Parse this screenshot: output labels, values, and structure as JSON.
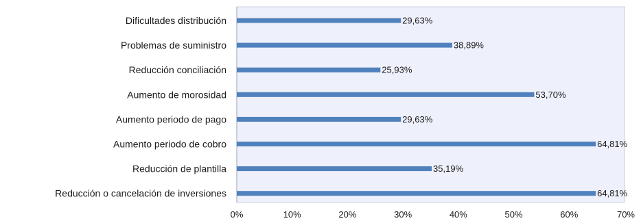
{
  "chart_data": {
    "type": "bar",
    "orientation": "horizontal",
    "categories": [
      "Dificultades distribución",
      "Problemas de suministro",
      "Reducción conciliación",
      "Aumento de morosidad",
      "Aumento periodo de pago",
      "Aumento periodo de cobro",
      "Reducción de plantilla",
      "Reducción o cancelación de inversiones"
    ],
    "values": [
      29.63,
      38.89,
      25.93,
      53.7,
      29.63,
      64.81,
      35.19,
      64.81
    ],
    "data_labels": [
      "29,63%",
      "38,89%",
      "25,93%",
      "53,70%",
      "29,63%",
      "64,81%",
      "35,19%",
      "64,81%"
    ],
    "xlim": [
      0,
      70
    ],
    "x_ticks": [
      0,
      10,
      20,
      30,
      40,
      50,
      60,
      70
    ],
    "x_tick_labels": [
      "0%",
      "10%",
      "20%",
      "30%",
      "40%",
      "50%",
      "60%",
      "70%"
    ],
    "title": "",
    "xlabel": "",
    "ylabel": "",
    "grid": false,
    "legend": "none",
    "colors": {
      "bar": "#4f81bd",
      "plot_background": "#eef0fb",
      "plot_border": "#c9cde0"
    }
  }
}
